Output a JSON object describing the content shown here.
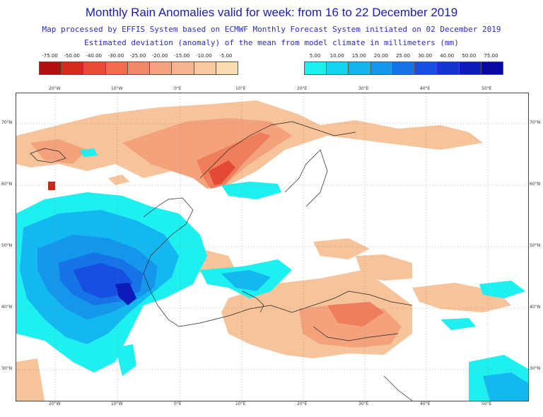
{
  "header": {
    "title": "Monthly Rain Anomalies valid for week: from 16 to 22 December 2019",
    "subtitle": "Map processed by EFFIS System based on ECMWF Monthly Forecast System initiated on 02 December 2019",
    "description": "Estimated deviation (anomaly) of the mean from model climate in millimeters (mm)"
  },
  "legend_negative": {
    "labels": [
      "-75.00",
      "-50.00",
      "-40.00",
      "-30.00",
      "-25.00",
      "-20.00",
      "-15.00",
      "-10.00",
      "-5.00"
    ],
    "colors": [
      "#b01010",
      "#d42a1c",
      "#e84a34",
      "#f06c4c",
      "#f4896a",
      "#f6a27e",
      "#f7b58f",
      "#f9c89f",
      "#fbdcb0"
    ]
  },
  "legend_positive": {
    "labels": [
      "5.00",
      "10.00",
      "15.00",
      "20.00",
      "25.00",
      "30.00",
      "40.00",
      "50.00",
      "75.00"
    ],
    "colors": [
      "#1ef0f0",
      "#14d4f2",
      "#12b4ee",
      "#1496ea",
      "#1674e6",
      "#1650e0",
      "#1234d0",
      "#0c1cb8",
      "#0808a0"
    ]
  },
  "map": {
    "lon_labels": [
      "20°W",
      "10°W",
      "0°E",
      "10°E",
      "20°E",
      "30°E",
      "40°E",
      "50°E"
    ],
    "lat_labels": [
      "70°N",
      "60°N",
      "50°N",
      "40°N",
      "30°N"
    ]
  }
}
